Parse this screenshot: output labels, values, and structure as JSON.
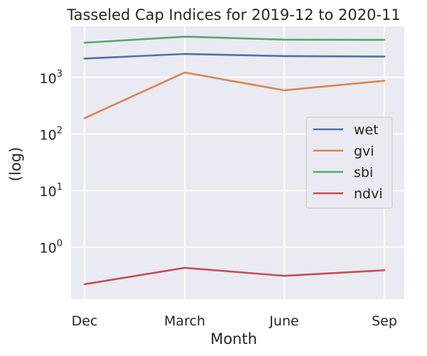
{
  "chart_data": {
    "type": "line",
    "title": "Tasseled Cap Indices for 2019-12 to 2020-11",
    "xlabel": "Month",
    "ylabel": "(log)",
    "yscale": "log",
    "ylim": [
      0.12,
      8000
    ],
    "grid": true,
    "legend_position": "right",
    "categories": [
      "Dec",
      "March",
      "June",
      "Sep"
    ],
    "y_ticks": [
      {
        "value": 1,
        "base": "10",
        "exp": "0"
      },
      {
        "value": 10,
        "base": "10",
        "exp": "1"
      },
      {
        "value": 100,
        "base": "10",
        "exp": "2"
      },
      {
        "value": 1000,
        "base": "10",
        "exp": "3"
      }
    ],
    "series": [
      {
        "name": "wet",
        "color": "#4c72b0",
        "values": [
          2150,
          2600,
          2380,
          2330
        ]
      },
      {
        "name": "gvi",
        "color": "#dd8452",
        "values": [
          190,
          1220,
          590,
          870
        ]
      },
      {
        "name": "sbi",
        "color": "#55a868",
        "values": [
          4100,
          5250,
          4650,
          4600
        ]
      },
      {
        "name": "ndvi",
        "color": "#c44e52",
        "values": [
          0.22,
          0.43,
          0.31,
          0.39
        ]
      }
    ],
    "colors": {
      "plot_background": "#eaeaf2",
      "grid": "#ffffff",
      "text": "#262626",
      "legend_background": "#eaeaf2",
      "legend_border": "#cccccc"
    }
  }
}
